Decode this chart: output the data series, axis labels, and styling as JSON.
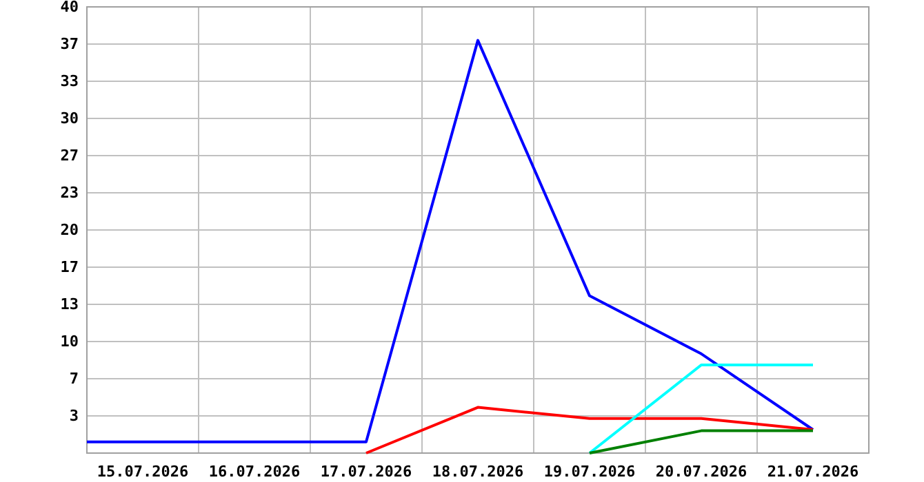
{
  "chart_data": {
    "type": "line",
    "xlim": [
      "2026-07-14T12:00",
      "2026-07-21T12:00"
    ],
    "xticks": [
      {
        "value": "2026-07-15",
        "label": "15.07.2026"
      },
      {
        "value": "2026-07-16",
        "label": "16.07.2026"
      },
      {
        "value": "2026-07-17",
        "label": "17.07.2026"
      },
      {
        "value": "2026-07-18",
        "label": "18.07.2026"
      },
      {
        "value": "2026-07-19",
        "label": "19.07.2026"
      },
      {
        "value": "2026-07-20",
        "label": "20.07.2026"
      },
      {
        "value": "2026-07-21",
        "label": "21.07.2026"
      },
      {
        "value": "2026-07-15T12:00",
        "label": null
      },
      {
        "value": "2026-07-16T12:00",
        "label": null
      },
      {
        "value": "2026-07-17T12:00",
        "label": null
      },
      {
        "value": "2026-07-18T12:00",
        "label": null
      },
      {
        "value": "2026-07-19T12:00",
        "label": null
      },
      {
        "value": "2026-07-20T12:00",
        "label": null
      }
    ],
    "ylim": [
      0,
      40
    ],
    "yticks": [
      {
        "value": 3.333,
        "label": "3"
      },
      {
        "value": 6.667,
        "label": "7"
      },
      10,
      {
        "value": 13.333,
        "label": "13"
      },
      {
        "value": 16.667,
        "label": "17"
      },
      20,
      {
        "value": 23.333,
        "label": "23"
      },
      {
        "value": 26.667,
        "label": "27"
      },
      30,
      {
        "value": 33.333,
        "label": "33"
      },
      {
        "value": 36.667,
        "label": "37"
      },
      40
    ],
    "grid": true,
    "marker": "none",
    "line_style": "solid",
    "series": [
      {
        "color": "#0000ff",
        "x": [
          "2026-07-14T12:00",
          "2026-07-17",
          "2026-07-18",
          "2026-07-19",
          "2026-07-20",
          "2026-07-21"
        ],
        "values": [
          1,
          1,
          37,
          14.1,
          8.9,
          2.1
        ]
      },
      {
        "color": "#ff0000",
        "x": [
          "2026-07-17",
          "2026-07-18",
          "2026-07-19",
          "2026-07-20",
          "2026-07-21"
        ],
        "values": [
          0,
          4.1,
          3.1,
          3.1,
          2.1
        ]
      },
      {
        "color": "#00ffff",
        "x": [
          "2026-07-19",
          "2026-07-20",
          "2026-07-21"
        ],
        "values": [
          0,
          7.9,
          7.9
        ]
      },
      {
        "color": "#008000",
        "x": [
          "2026-07-19",
          "2026-07-20",
          "2026-07-21"
        ],
        "values": [
          0,
          2,
          2
        ]
      }
    ]
  }
}
